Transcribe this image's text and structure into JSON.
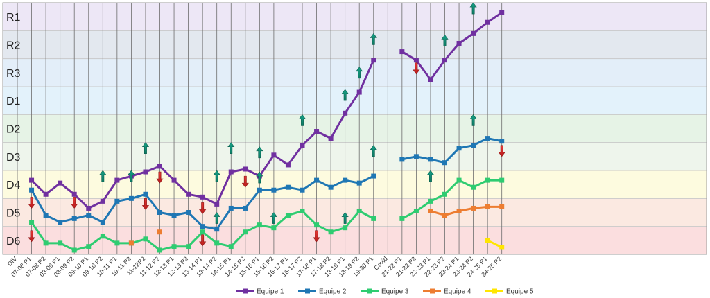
{
  "chart_data": {
    "type": "line",
    "title": "",
    "xlabel": "",
    "ylabel": "",
    "y_categories": [
      "R1",
      "R2",
      "R3",
      "D1",
      "D2",
      "D3",
      "D4",
      "D5",
      "D6"
    ],
    "band_colors": [
      "#ede7f6",
      "#e3e8ef",
      "#e3eef9",
      "#e3f2fb",
      "#e6f3e6",
      "#eef5ec",
      "#fdfbdf",
      "#fbe9e1",
      "#fbdedf"
    ],
    "x_categories": [
      "DIV",
      "07-08 P1",
      "07-08 P2",
      "08-09 P1",
      "08-09 P2",
      "09-10 P1",
      "09-10 P2",
      "10-11 P1",
      "10-11 P2",
      "11-12P2",
      "11-12 P2",
      "12-13 P1",
      "12-13 P2",
      "13-14 P1",
      "13-14 P2",
      "14-15 P1",
      "14-15 P2",
      "15-16 P1",
      "15-16 P2",
      "16-17 P1",
      "16-17 P2",
      "17-18 P1",
      "17-18 P2",
      "18-19 P1",
      "18-19 P2",
      "19-20 P1",
      "Covid",
      "21-22 P1",
      "21-22 P2",
      "22-23 P1",
      "22-23 P2",
      "23-24 P1",
      "23-24 P2",
      "24-25 P1",
      "24-25 P2"
    ],
    "series": [
      {
        "name": "Equipe 1",
        "color": "#7030a0",
        "segments": [
          [
            [
              1,
              6.35
            ],
            [
              2,
              6.85
            ],
            [
              3,
              6.45
            ],
            [
              4,
              6.85
            ],
            [
              5,
              7.35
            ],
            [
              6,
              7.1
            ],
            [
              7,
              6.35
            ],
            [
              8,
              6.2
            ],
            [
              9,
              6.05
            ],
            [
              10,
              5.85
            ],
            [
              11,
              6.35
            ],
            [
              12,
              6.85
            ],
            [
              13,
              6.95
            ],
            [
              14,
              7.2
            ],
            [
              15,
              6.05
            ],
            [
              16,
              5.95
            ],
            [
              17,
              6.2
            ],
            [
              18,
              5.45
            ],
            [
              19,
              5.8
            ],
            [
              20,
              5.1
            ],
            [
              21,
              4.6
            ],
            [
              22,
              4.85
            ],
            [
              23,
              3.95
            ],
            [
              24,
              3.2
            ],
            [
              25,
              2.05
            ]
          ],
          [
            [
              27,
              1.75
            ],
            [
              28,
              2.05
            ],
            [
              29,
              2.75
            ],
            [
              30,
              2.05
            ],
            [
              31,
              1.45
            ],
            [
              32,
              1.1
            ],
            [
              33,
              0.7
            ],
            [
              34,
              0.35
            ]
          ]
        ]
      },
      {
        "name": "Equipe 2",
        "color": "#1f77b4",
        "segments": [
          [
            [
              1,
              6.7
            ],
            [
              2,
              7.6
            ],
            [
              3,
              7.85
            ],
            [
              4,
              7.72
            ],
            [
              5,
              7.6
            ],
            [
              6,
              7.85
            ],
            [
              7,
              7.1
            ],
            [
              8,
              7.0
            ],
            [
              9,
              6.85
            ],
            [
              10,
              7.5
            ],
            [
              11,
              7.6
            ],
            [
              12,
              7.5
            ],
            [
              13,
              8.0
            ],
            [
              14,
              8.1
            ],
            [
              15,
              7.35
            ],
            [
              16,
              7.35
            ],
            [
              17,
              6.7
            ],
            [
              18,
              6.7
            ],
            [
              19,
              6.6
            ],
            [
              20,
              6.7
            ],
            [
              21,
              6.35
            ],
            [
              22,
              6.6
            ],
            [
              23,
              6.35
            ],
            [
              24,
              6.45
            ],
            [
              25,
              6.2
            ]
          ],
          [
            [
              27,
              5.6
            ],
            [
              28,
              5.5
            ],
            [
              29,
              5.6
            ],
            [
              30,
              5.72
            ],
            [
              31,
              5.2
            ],
            [
              32,
              5.1
            ],
            [
              33,
              4.85
            ],
            [
              34,
              4.95
            ]
          ]
        ]
      },
      {
        "name": "Equipe 3",
        "color": "#2ecc71",
        "segments": [
          [
            [
              1,
              7.85
            ],
            [
              2,
              8.6
            ],
            [
              3,
              8.6
            ],
            [
              4,
              8.85
            ],
            [
              5,
              8.72
            ],
            [
              6,
              8.35
            ],
            [
              7,
              8.6
            ],
            [
              8,
              8.6
            ],
            [
              9,
              8.45
            ],
            [
              10,
              8.85
            ],
            [
              11,
              8.72
            ],
            [
              12,
              8.72
            ],
            [
              13,
              8.2
            ],
            [
              14,
              8.6
            ],
            [
              15,
              8.72
            ],
            [
              16,
              8.2
            ],
            [
              17,
              7.95
            ],
            [
              18,
              8.05
            ],
            [
              19,
              7.6
            ],
            [
              20,
              7.45
            ],
            [
              21,
              7.95
            ],
            [
              22,
              8.2
            ],
            [
              23,
              8.05
            ],
            [
              24,
              7.45
            ],
            [
              25,
              7.72
            ]
          ],
          [
            [
              27,
              7.72
            ],
            [
              28,
              7.45
            ],
            [
              29,
              7.1
            ],
            [
              30,
              6.85
            ],
            [
              31,
              6.35
            ],
            [
              32,
              6.6
            ],
            [
              33,
              6.35
            ],
            [
              34,
              6.35
            ]
          ]
        ]
      },
      {
        "name": "Equipe 4",
        "color": "#ed7d31",
        "segments": [
          [
            [
              8,
              8.6
            ]
          ],
          [
            [
              10,
              8.2
            ]
          ],
          [
            [
              29,
              7.45
            ],
            [
              30,
              7.6
            ],
            [
              31,
              7.45
            ],
            [
              32,
              7.35
            ],
            [
              33,
              7.3
            ],
            [
              34,
              7.3
            ]
          ]
        ]
      },
      {
        "name": "Equipe 5",
        "color": "#ffe600",
        "segments": [
          [
            [
              33,
              8.5
            ],
            [
              34,
              8.75
            ]
          ]
        ]
      }
    ],
    "arrows": [
      {
        "x": 1,
        "y": 7.15,
        "dir": "down"
      },
      {
        "x": 1,
        "y": 8.35,
        "dir": "down"
      },
      {
        "x": 4,
        "y": 7.15,
        "dir": "down"
      },
      {
        "x": 6,
        "y": 6.2,
        "dir": "up"
      },
      {
        "x": 8,
        "y": 6.2,
        "dir": "up"
      },
      {
        "x": 9,
        "y": 5.2,
        "dir": "up"
      },
      {
        "x": 9,
        "y": 7.2,
        "dir": "down"
      },
      {
        "x": 10,
        "y": 6.25,
        "dir": "down"
      },
      {
        "x": 13,
        "y": 7.35,
        "dir": "down"
      },
      {
        "x": 13,
        "y": 8.5,
        "dir": "down"
      },
      {
        "x": 14,
        "y": 6.2,
        "dir": "up"
      },
      {
        "x": 14,
        "y": 7.7,
        "dir": "up"
      },
      {
        "x": 15,
        "y": 5.2,
        "dir": "up"
      },
      {
        "x": 16,
        "y": 6.4,
        "dir": "down"
      },
      {
        "x": 17,
        "y": 5.35,
        "dir": "up"
      },
      {
        "x": 17,
        "y": 6.25,
        "dir": "up"
      },
      {
        "x": 18,
        "y": 7.7,
        "dir": "up"
      },
      {
        "x": 20,
        "y": 4.2,
        "dir": "up"
      },
      {
        "x": 21,
        "y": 8.35,
        "dir": "down"
      },
      {
        "x": 23,
        "y": 3.3,
        "dir": "up"
      },
      {
        "x": 23,
        "y": 7.7,
        "dir": "up"
      },
      {
        "x": 24,
        "y": 2.5,
        "dir": "up"
      },
      {
        "x": 25,
        "y": 1.3,
        "dir": "up"
      },
      {
        "x": 25,
        "y": 5.3,
        "dir": "up"
      },
      {
        "x": 28,
        "y": 2.35,
        "dir": "down"
      },
      {
        "x": 29,
        "y": 6.2,
        "dir": "up"
      },
      {
        "x": 30,
        "y": 1.35,
        "dir": "up"
      },
      {
        "x": 32,
        "y": 0.2,
        "dir": "up"
      },
      {
        "x": 32,
        "y": 4.2,
        "dir": "up"
      },
      {
        "x": 34,
        "y": 5.3,
        "dir": "down"
      }
    ],
    "legend_position": "bottom",
    "grid": true
  }
}
